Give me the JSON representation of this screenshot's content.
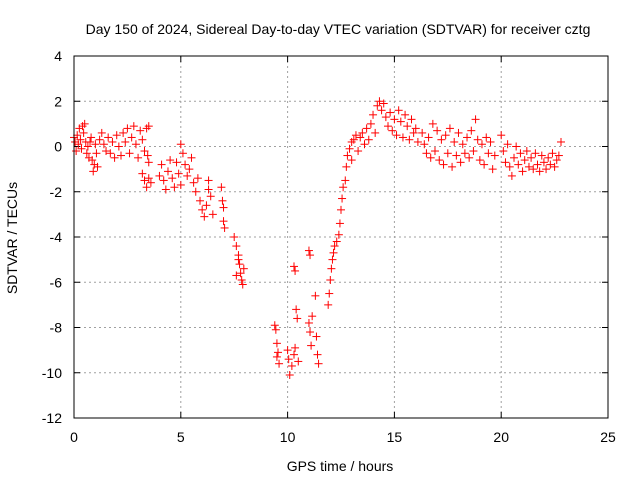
{
  "chart_data": {
    "type": "scatter",
    "title": "Day 150 of 2024, Sidereal Day-to-day VTEC variation (SDTVAR) for receiver cztg",
    "xlabel": "GPS time / hours",
    "ylabel": "SDTVAR / TECUs",
    "xlim": [
      0,
      25
    ],
    "ylim": [
      -12,
      4
    ],
    "xticks": [
      0,
      5,
      10,
      15,
      20,
      25
    ],
    "xtick_labels": [
      "0",
      "5",
      "10",
      "15",
      "20",
      "25"
    ],
    "yticks": [
      4,
      2,
      0,
      -2,
      -4,
      -6,
      -8,
      -10,
      -12
    ],
    "ytick_labels": [
      "4",
      "2",
      "0",
      "-2",
      "-4",
      "-6",
      "-8",
      "-10",
      "-12"
    ],
    "grid": true,
    "marker": "+",
    "series": [
      {
        "name": "SDTVAR",
        "color": "#ff0000",
        "points": [
          [
            0.0,
            0.4
          ],
          [
            0.05,
            0.2
          ],
          [
            0.1,
            -0.2
          ],
          [
            0.15,
            0.5
          ],
          [
            0.2,
            0.1
          ],
          [
            0.25,
            0.8
          ],
          [
            0.3,
            0.3
          ],
          [
            0.35,
            -0.1
          ],
          [
            0.4,
            0.9
          ],
          [
            0.45,
            0.6
          ],
          [
            0.5,
            1.0
          ],
          [
            0.55,
            0.2
          ],
          [
            0.6,
            -0.3
          ],
          [
            0.65,
            0.0
          ],
          [
            0.7,
            -0.5
          ],
          [
            0.75,
            0.2
          ],
          [
            0.8,
            0.4
          ],
          [
            0.85,
            -0.6
          ],
          [
            0.9,
            -1.1
          ],
          [
            0.95,
            -0.8
          ],
          [
            1.0,
            0.1
          ],
          [
            1.05,
            -0.3
          ],
          [
            1.1,
            -0.9
          ],
          [
            1.2,
            0.3
          ],
          [
            1.3,
            0.6
          ],
          [
            1.4,
            0.1
          ],
          [
            1.5,
            -0.2
          ],
          [
            1.6,
            0.4
          ],
          [
            1.7,
            -0.3
          ],
          [
            1.8,
            0.2
          ],
          [
            1.9,
            -0.5
          ],
          [
            2.0,
            0.5
          ],
          [
            2.1,
            0.0
          ],
          [
            2.2,
            -0.4
          ],
          [
            2.3,
            0.6
          ],
          [
            2.4,
            0.2
          ],
          [
            2.5,
            0.8
          ],
          [
            2.6,
            -0.3
          ],
          [
            2.7,
            0.4
          ],
          [
            2.8,
            0.9
          ],
          [
            2.9,
            0.1
          ],
          [
            3.0,
            -0.5
          ],
          [
            3.1,
            0.7
          ],
          [
            3.2,
            0.3
          ],
          [
            3.3,
            -0.2
          ],
          [
            3.4,
            0.8
          ],
          [
            3.5,
            0.9
          ],
          [
            3.45,
            -0.4
          ],
          [
            3.5,
            -0.7
          ],
          [
            3.2,
            -1.2
          ],
          [
            3.3,
            -1.5
          ],
          [
            3.4,
            -1.8
          ],
          [
            3.5,
            -1.4
          ],
          [
            3.6,
            -1.6
          ],
          [
            4.0,
            -1.3
          ],
          [
            4.1,
            -0.8
          ],
          [
            4.2,
            -1.5
          ],
          [
            4.3,
            -1.9
          ],
          [
            4.4,
            -1.1
          ],
          [
            4.5,
            -0.6
          ],
          [
            4.6,
            -1.4
          ],
          [
            4.7,
            -1.8
          ],
          [
            4.8,
            -0.7
          ],
          [
            4.9,
            -1.2
          ],
          [
            5.0,
            -1.7
          ],
          [
            5.0,
            0.1
          ],
          [
            5.1,
            -0.3
          ],
          [
            5.2,
            -0.8
          ],
          [
            5.3,
            -1.3
          ],
          [
            5.4,
            -1.0
          ],
          [
            5.5,
            -0.5
          ],
          [
            5.6,
            -1.6
          ],
          [
            5.7,
            -2.0
          ],
          [
            5.8,
            -1.4
          ],
          [
            5.9,
            -2.4
          ],
          [
            6.0,
            -2.8
          ],
          [
            6.1,
            -3.1
          ],
          [
            6.2,
            -2.6
          ],
          [
            6.3,
            -1.9
          ],
          [
            6.4,
            -2.2
          ],
          [
            6.5,
            -3.0
          ],
          [
            6.3,
            -1.5
          ],
          [
            6.9,
            -1.8
          ],
          [
            6.95,
            -2.4
          ],
          [
            7.0,
            -3.3
          ],
          [
            7.05,
            -3.6
          ],
          [
            7.0,
            -2.7
          ],
          [
            7.5,
            -4.0
          ],
          [
            7.6,
            -4.4
          ],
          [
            7.7,
            -4.8
          ],
          [
            7.75,
            -5.2
          ],
          [
            7.8,
            -5.6
          ],
          [
            7.85,
            -5.9
          ],
          [
            7.9,
            -6.1
          ],
          [
            7.95,
            -5.4
          ],
          [
            7.6,
            -5.7
          ],
          [
            7.7,
            -5.0
          ],
          [
            9.4,
            -7.9
          ],
          [
            9.45,
            -8.1
          ],
          [
            9.5,
            -8.7
          ],
          [
            9.55,
            -9.1
          ],
          [
            9.6,
            -9.6
          ],
          [
            9.5,
            -9.3
          ],
          [
            10.0,
            -9.0
          ],
          [
            10.05,
            -9.4
          ],
          [
            10.1,
            -10.1
          ],
          [
            10.2,
            -9.7
          ],
          [
            10.3,
            -9.2
          ],
          [
            10.35,
            -8.9
          ],
          [
            10.3,
            -5.3
          ],
          [
            10.35,
            -5.5
          ],
          [
            10.4,
            -7.2
          ],
          [
            10.45,
            -7.6
          ],
          [
            10.5,
            -9.5
          ],
          [
            11.0,
            -4.6
          ],
          [
            11.05,
            -4.8
          ],
          [
            11.0,
            -7.8
          ],
          [
            11.05,
            -8.2
          ],
          [
            11.1,
            -8.8
          ],
          [
            11.15,
            -7.5
          ],
          [
            11.3,
            -6.6
          ],
          [
            11.35,
            -8.4
          ],
          [
            11.4,
            -9.2
          ],
          [
            11.45,
            -9.6
          ],
          [
            11.9,
            -7.0
          ],
          [
            11.95,
            -6.5
          ],
          [
            12.0,
            -5.9
          ],
          [
            12.05,
            -5.4
          ],
          [
            12.1,
            -5.0
          ],
          [
            12.15,
            -4.7
          ],
          [
            12.2,
            -4.4
          ],
          [
            12.3,
            -4.2
          ],
          [
            12.4,
            -3.9
          ],
          [
            12.45,
            -3.4
          ],
          [
            12.5,
            -2.8
          ],
          [
            12.55,
            -2.3
          ],
          [
            12.6,
            -1.8
          ],
          [
            12.7,
            -1.5
          ],
          [
            12.75,
            -0.9
          ],
          [
            12.8,
            -0.4
          ],
          [
            12.9,
            -0.1
          ],
          [
            13.0,
            0.2
          ],
          [
            13.0,
            -0.6
          ],
          [
            13.1,
            0.3
          ],
          [
            13.2,
            0.5
          ],
          [
            13.3,
            -0.2
          ],
          [
            13.4,
            0.4
          ],
          [
            13.5,
            0.6
          ],
          [
            13.6,
            0.1
          ],
          [
            13.7,
            0.8
          ],
          [
            13.8,
            0.3
          ],
          [
            13.9,
            1.0
          ],
          [
            14.0,
            1.4
          ],
          [
            14.1,
            0.6
          ],
          [
            14.2,
            1.8
          ],
          [
            14.3,
            2.0
          ],
          [
            14.4,
            1.6
          ],
          [
            14.5,
            1.9
          ],
          [
            14.6,
            1.3
          ],
          [
            14.7,
            0.9
          ],
          [
            14.8,
            1.5
          ],
          [
            14.9,
            0.7
          ],
          [
            15.0,
            1.2
          ],
          [
            15.1,
            0.5
          ],
          [
            15.2,
            1.6
          ],
          [
            15.3,
            1.1
          ],
          [
            15.4,
            0.4
          ],
          [
            15.5,
            1.4
          ],
          [
            15.6,
            0.9
          ],
          [
            15.7,
            0.3
          ],
          [
            15.8,
            1.2
          ],
          [
            15.9,
            0.6
          ],
          [
            16.0,
            0.8
          ],
          [
            16.1,
            0.2
          ],
          [
            16.3,
            0.6
          ],
          [
            16.4,
            0.1
          ],
          [
            16.5,
            -0.3
          ],
          [
            16.6,
            0.4
          ],
          [
            16.7,
            -0.5
          ],
          [
            16.8,
            1.0
          ],
          [
            16.9,
            -0.2
          ],
          [
            17.0,
            0.7
          ],
          [
            17.1,
            -0.6
          ],
          [
            17.2,
            0.3
          ],
          [
            17.3,
            -0.8
          ],
          [
            17.4,
            0.5
          ],
          [
            17.5,
            -0.3
          ],
          [
            17.6,
            0.8
          ],
          [
            17.7,
            -0.9
          ],
          [
            17.8,
            0.2
          ],
          [
            17.9,
            -0.4
          ],
          [
            18.0,
            0.6
          ],
          [
            18.1,
            -0.7
          ],
          [
            18.2,
            0.1
          ],
          [
            18.3,
            -0.3
          ],
          [
            18.4,
            0.4
          ],
          [
            18.5,
            -0.5
          ],
          [
            18.6,
            0.7
          ],
          [
            18.7,
            -0.2
          ],
          [
            18.8,
            1.2
          ],
          [
            18.9,
            0.3
          ],
          [
            19.0,
            -0.6
          ],
          [
            19.1,
            0.1
          ],
          [
            19.2,
            -0.8
          ],
          [
            19.3,
            0.4
          ],
          [
            19.4,
            -0.3
          ],
          [
            19.5,
            0.2
          ],
          [
            19.6,
            -1.0
          ],
          [
            19.7,
            -0.4
          ],
          [
            20.0,
            0.5
          ],
          [
            20.1,
            -0.2
          ],
          [
            20.2,
            -0.7
          ],
          [
            20.3,
            0.1
          ],
          [
            20.4,
            -0.9
          ],
          [
            20.5,
            -1.3
          ],
          [
            20.6,
            -0.5
          ],
          [
            20.7,
            0.0
          ],
          [
            20.8,
            -0.8
          ],
          [
            20.9,
            -0.3
          ],
          [
            21.0,
            -1.1
          ],
          [
            21.1,
            -0.6
          ],
          [
            21.2,
            -0.2
          ],
          [
            21.3,
            -0.9
          ],
          [
            21.4,
            -0.5
          ],
          [
            21.5,
            -1.0
          ],
          [
            21.6,
            -0.3
          ],
          [
            21.7,
            -0.8
          ],
          [
            21.8,
            -1.1
          ],
          [
            21.9,
            -0.4
          ],
          [
            22.0,
            -0.7
          ],
          [
            22.1,
            -1.0
          ],
          [
            22.2,
            -0.5
          ],
          [
            22.3,
            -0.8
          ],
          [
            22.4,
            -0.3
          ],
          [
            22.5,
            -0.9
          ],
          [
            22.6,
            -0.6
          ],
          [
            22.7,
            -0.4
          ],
          [
            22.8,
            0.2
          ]
        ]
      }
    ]
  }
}
